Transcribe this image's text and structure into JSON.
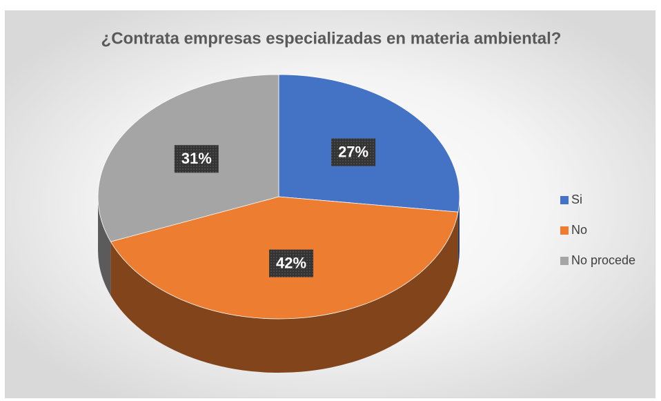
{
  "chart_data": {
    "type": "pie",
    "title": "¿Contrata empresas especializadas en materia ambiental?",
    "categories": [
      "Si",
      "No",
      "No procede"
    ],
    "values": [
      27,
      42,
      31
    ],
    "value_labels": [
      "27%",
      "42%",
      "31%"
    ],
    "colors": [
      "#4472c4",
      "#ed7d31",
      "#a5a5a5"
    ],
    "legend": "right"
  }
}
